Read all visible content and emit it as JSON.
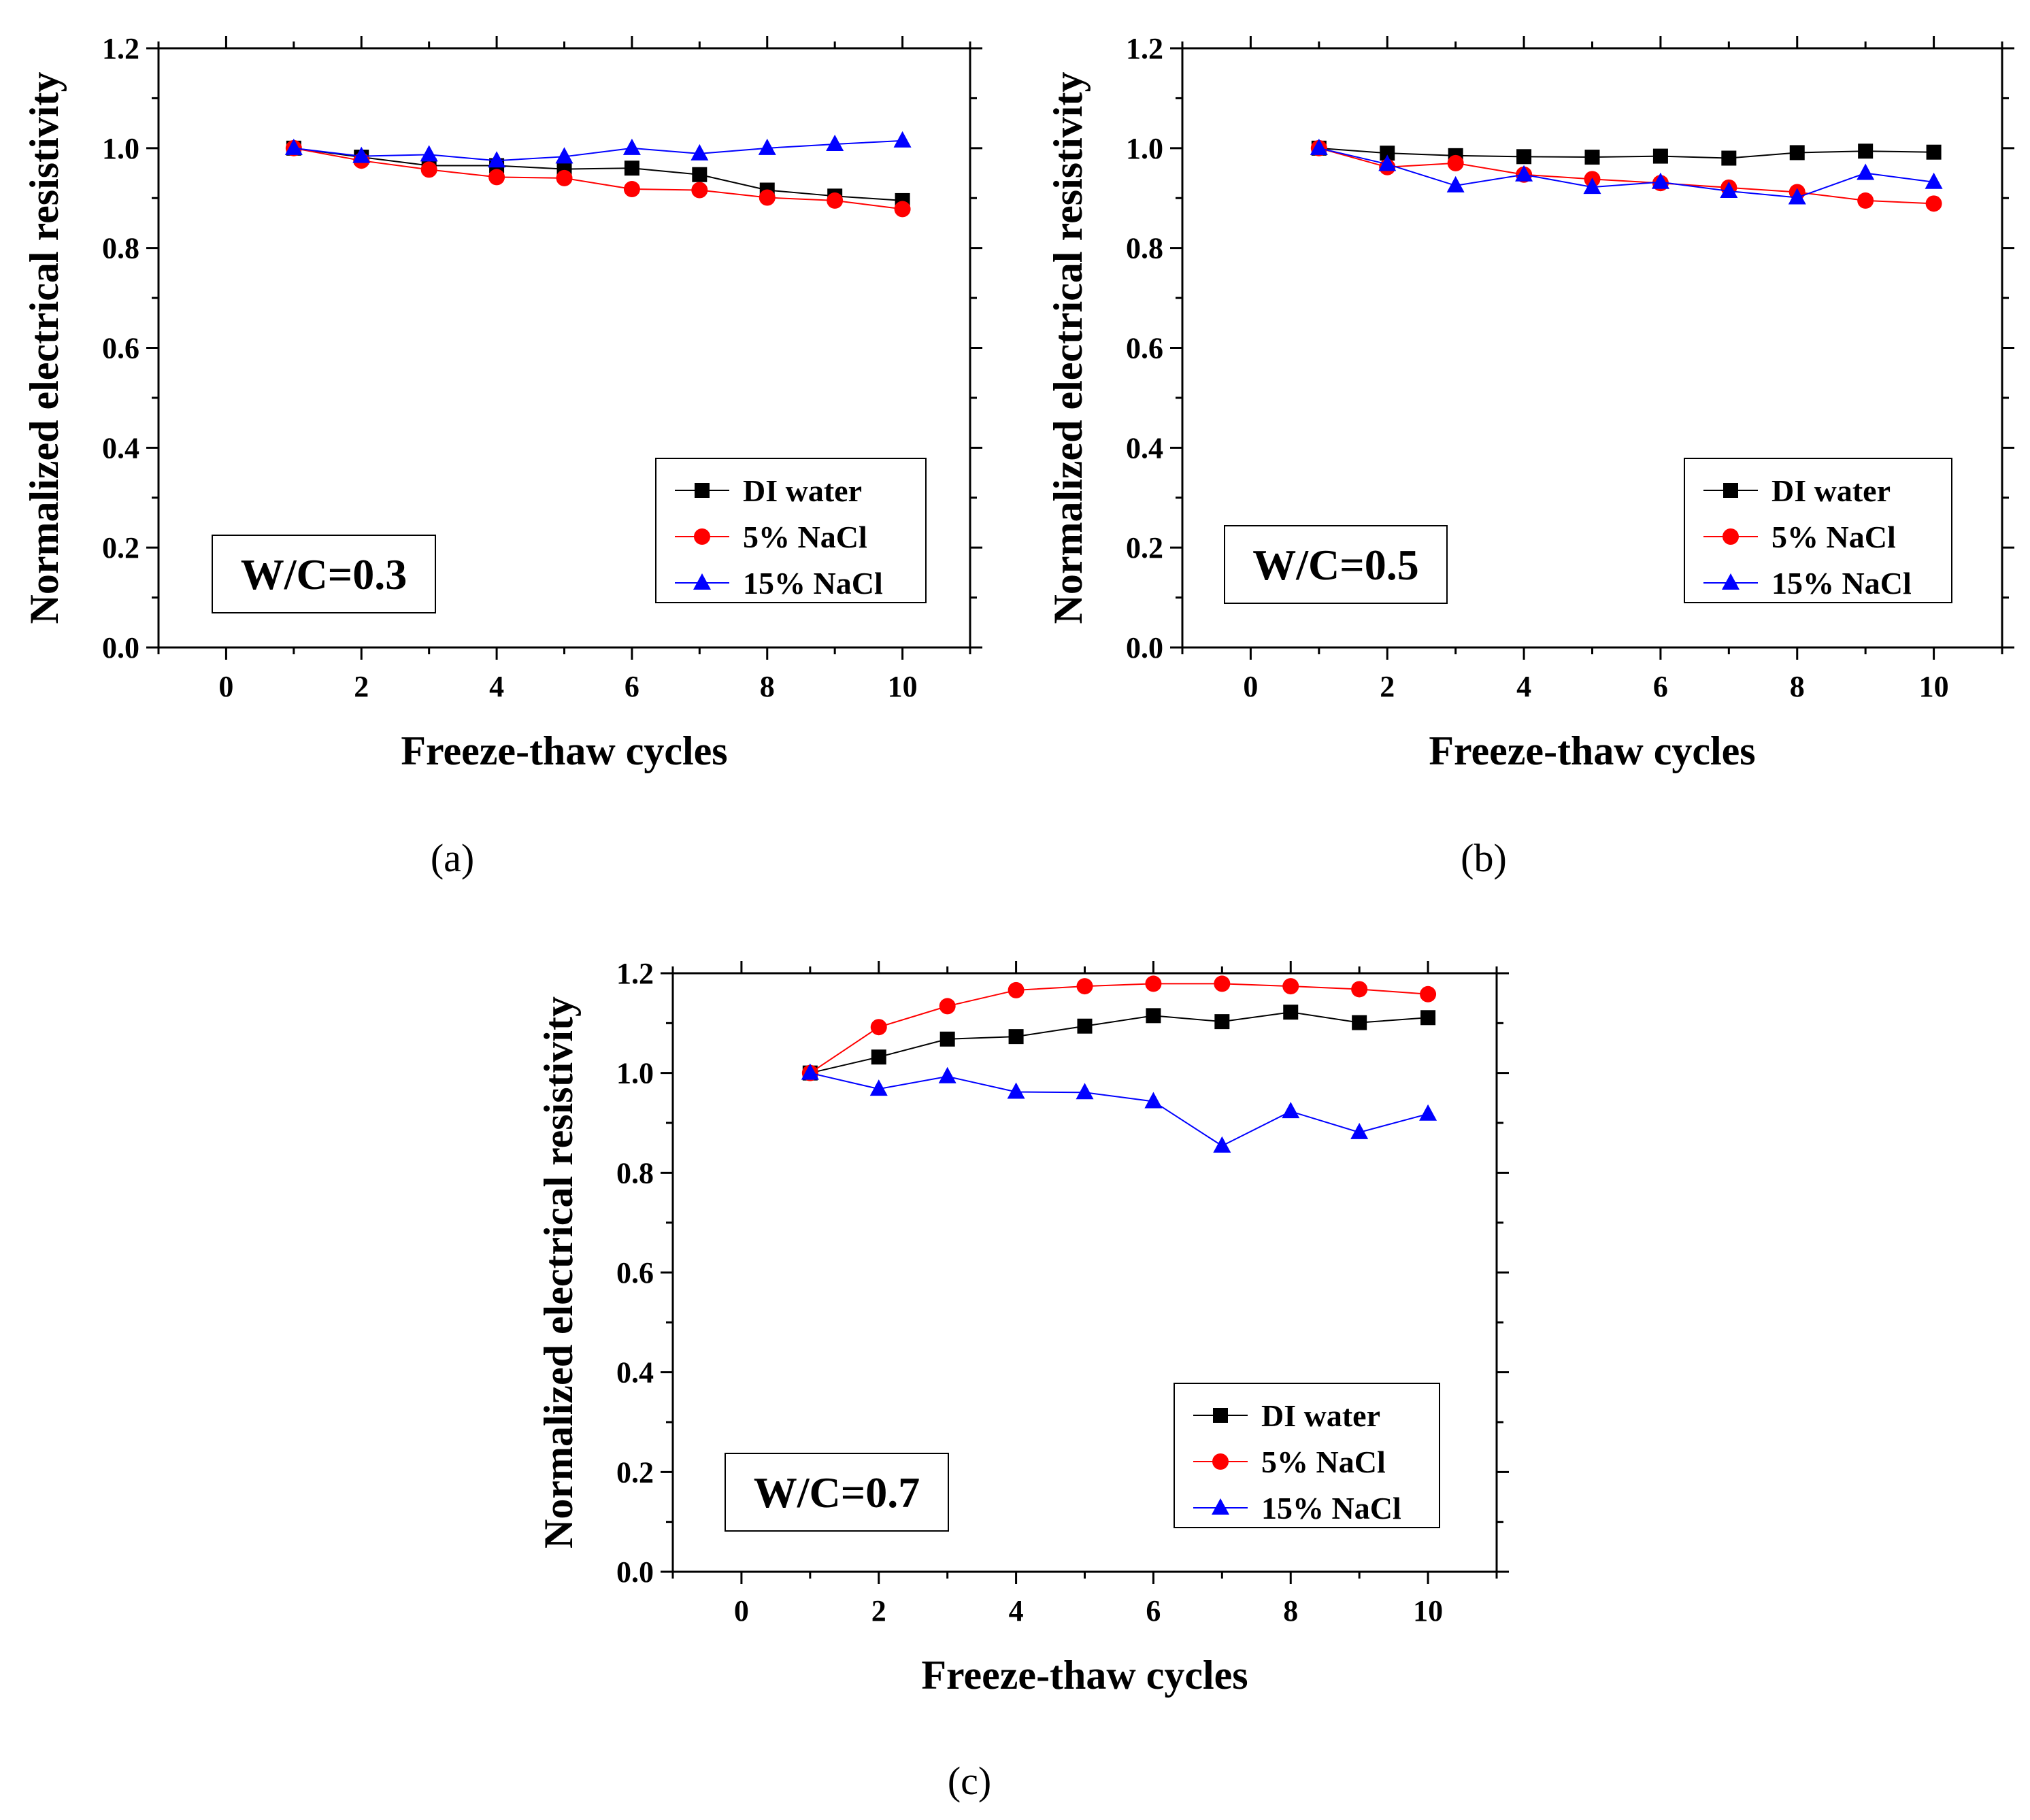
{
  "colors": {
    "DI water": "#000000",
    "5% NaCl": "#ff0000",
    "15% NaCl": "#0000ff",
    "axis": "#000000"
  },
  "chart_data": [
    {
      "id": "a",
      "type": "line",
      "panel_label": "(a)",
      "annotation": "W/C=0.3",
      "xlabel": "Freeze-thaw cycles",
      "ylabel": "Normalized electrical resistivity",
      "xlim": [
        -1,
        11
      ],
      "ylim": [
        0.0,
        1.2
      ],
      "xticks": [
        0,
        2,
        4,
        6,
        8,
        10
      ],
      "yticks": [
        0.0,
        0.2,
        0.4,
        0.6,
        0.8,
        1.0,
        1.2
      ],
      "xtick_labels": [
        "0",
        "2",
        "4",
        "6",
        "8",
        "10"
      ],
      "ytick_labels": [
        "0.0",
        "0.2",
        "0.4",
        "0.6",
        "0.8",
        "1.0",
        "1.2"
      ],
      "legend_position": "bottom-right",
      "grid": false,
      "x": [
        1,
        2,
        3,
        4,
        5,
        6,
        7,
        8,
        9,
        10
      ],
      "series": [
        {
          "name": "DI water",
          "marker": "square",
          "values": [
            1.0,
            0.982,
            0.965,
            0.965,
            0.958,
            0.96,
            0.947,
            0.916,
            0.904,
            0.895
          ]
        },
        {
          "name": "5% NaCl",
          "marker": "circle",
          "values": [
            1.0,
            0.975,
            0.957,
            0.942,
            0.94,
            0.918,
            0.916,
            0.901,
            0.895,
            0.878
          ]
        },
        {
          "name": "15% NaCl",
          "marker": "triangle",
          "values": [
            1.0,
            0.984,
            0.987,
            0.975,
            0.983,
            1.0,
            0.989,
            1.0,
            1.008,
            1.015
          ]
        }
      ]
    },
    {
      "id": "b",
      "type": "line",
      "panel_label": "(b)",
      "annotation": "W/C=0.5",
      "xlabel": "Freeze-thaw cycles",
      "ylabel": "Normalized electrical resistivity",
      "xlim": [
        -1,
        11
      ],
      "ylim": [
        0.0,
        1.2
      ],
      "xticks": [
        0,
        2,
        4,
        6,
        8,
        10
      ],
      "yticks": [
        0.0,
        0.2,
        0.4,
        0.6,
        0.8,
        1.0,
        1.2
      ],
      "xtick_labels": [
        "0",
        "2",
        "4",
        "6",
        "8",
        "10"
      ],
      "ytick_labels": [
        "0.0",
        "0.2",
        "0.4",
        "0.6",
        "0.8",
        "1.0",
        "1.2"
      ],
      "legend_position": "bottom-right",
      "grid": false,
      "x": [
        1,
        2,
        3,
        4,
        5,
        6,
        7,
        8,
        9,
        10
      ],
      "series": [
        {
          "name": "DI water",
          "marker": "square",
          "values": [
            1.0,
            0.99,
            0.985,
            0.983,
            0.982,
            0.984,
            0.98,
            0.991,
            0.994,
            0.992
          ]
        },
        {
          "name": "5% NaCl",
          "marker": "circle",
          "values": [
            1.0,
            0.962,
            0.97,
            0.947,
            0.938,
            0.93,
            0.921,
            0.912,
            0.895,
            0.889
          ]
        },
        {
          "name": "15% NaCl",
          "marker": "triangle",
          "values": [
            1.0,
            0.968,
            0.925,
            0.947,
            0.922,
            0.932,
            0.914,
            0.901,
            0.95,
            0.932
          ]
        }
      ]
    },
    {
      "id": "c",
      "type": "line",
      "panel_label": "(c)",
      "annotation": "W/C=0.7",
      "xlabel": "Freeze-thaw cycles",
      "ylabel": "Normalized electrical resistivity",
      "xlim": [
        -1,
        11
      ],
      "ylim": [
        0.0,
        1.2
      ],
      "xticks": [
        0,
        2,
        4,
        6,
        8,
        10
      ],
      "yticks": [
        0.0,
        0.2,
        0.4,
        0.6,
        0.8,
        1.0,
        1.2
      ],
      "xtick_labels": [
        "0",
        "2",
        "4",
        "6",
        "8",
        "10"
      ],
      "ytick_labels": [
        "0.0",
        "0.2",
        "0.4",
        "0.6",
        "0.8",
        "1.0",
        "1.2"
      ],
      "legend_position": "bottom-right",
      "grid": false,
      "x": [
        1,
        2,
        3,
        4,
        5,
        6,
        7,
        8,
        9,
        10
      ],
      "series": [
        {
          "name": "DI water",
          "marker": "square",
          "values": [
            1.0,
            1.032,
            1.068,
            1.073,
            1.094,
            1.115,
            1.103,
            1.122,
            1.101,
            1.111
          ]
        },
        {
          "name": "5% NaCl",
          "marker": "circle",
          "values": [
            1.0,
            1.092,
            1.134,
            1.166,
            1.174,
            1.179,
            1.179,
            1.174,
            1.168,
            1.158
          ]
        },
        {
          "name": "15% NaCl",
          "marker": "triangle",
          "values": [
            1.0,
            0.968,
            0.993,
            0.962,
            0.961,
            0.943,
            0.854,
            0.923,
            0.881,
            0.918
          ]
        }
      ]
    }
  ]
}
